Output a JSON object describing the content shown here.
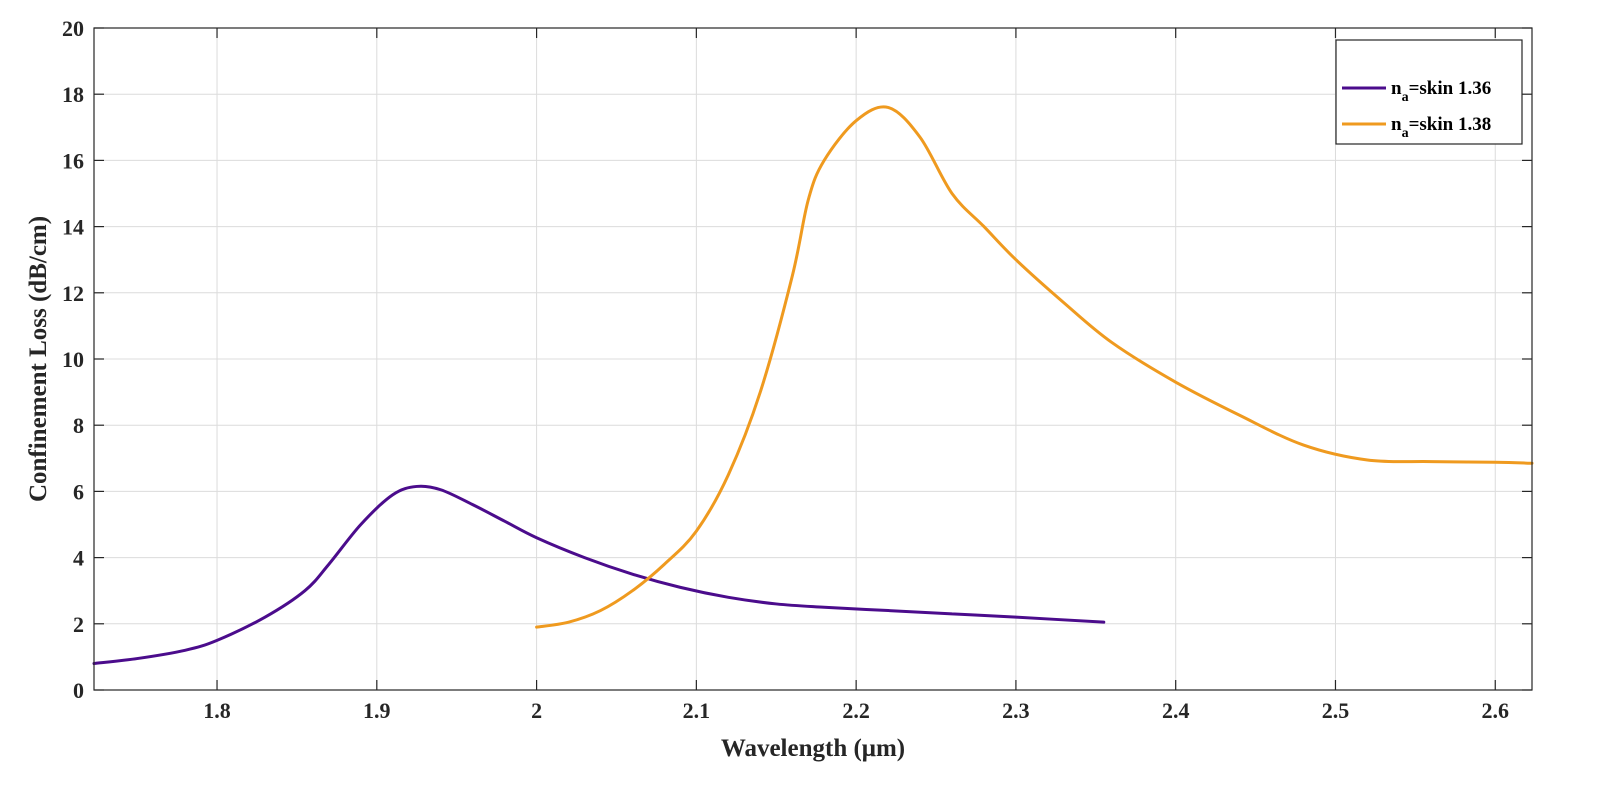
{
  "chart_data": {
    "type": "line",
    "xlabel": "Wavelength (μm)",
    "ylabel": "Confinement Loss (dB/cm)",
    "xlim": [
      1.723,
      2.623
    ],
    "ylim": [
      0,
      20
    ],
    "xticks": [
      1.8,
      1.9,
      2,
      2.1,
      2.2,
      2.3,
      2.4,
      2.5,
      2.6
    ],
    "xtick_labels": [
      "1.8",
      "1.9",
      "2",
      "2.1",
      "2.2",
      "2.3",
      "2.4",
      "2.5",
      "2.6"
    ],
    "yticks": [
      0,
      2,
      4,
      6,
      8,
      10,
      12,
      14,
      16,
      18,
      20
    ],
    "ytick_labels": [
      "0",
      "2",
      "4",
      "6",
      "8",
      "10",
      "12",
      "14",
      "16",
      "18",
      "20"
    ],
    "grid": true,
    "legend_position": "top-right",
    "series": [
      {
        "legend_main": "n",
        "legend_sub": "a",
        "legend_rest": "=skin 1.36",
        "color": "#4B0C8C",
        "x": [
          1.723,
          1.75,
          1.78,
          1.8,
          1.83,
          1.855,
          1.87,
          1.89,
          1.91,
          1.925,
          1.94,
          1.96,
          1.98,
          2.0,
          2.03,
          2.06,
          2.09,
          2.12,
          2.15,
          2.18,
          2.22,
          2.26,
          2.3,
          2.355
        ],
        "y": [
          0.8,
          0.95,
          1.2,
          1.5,
          2.2,
          3.0,
          3.8,
          5.0,
          5.9,
          6.15,
          6.05,
          5.6,
          5.1,
          4.6,
          4.0,
          3.5,
          3.1,
          2.8,
          2.6,
          2.5,
          2.4,
          2.3,
          2.2,
          2.05
        ]
      },
      {
        "legend_main": "n",
        "legend_sub": "a",
        "legend_rest": "=skin 1.38",
        "color": "#EF9A1F",
        "x": [
          2.0,
          2.02,
          2.04,
          2.06,
          2.08,
          2.1,
          2.12,
          2.14,
          2.16,
          2.17,
          2.18,
          2.2,
          2.22,
          2.24,
          2.26,
          2.28,
          2.3,
          2.33,
          2.36,
          2.4,
          2.44,
          2.48,
          2.52,
          2.56,
          2.6,
          2.623
        ],
        "y": [
          1.9,
          2.05,
          2.4,
          3.0,
          3.8,
          4.8,
          6.5,
          9.0,
          12.5,
          14.8,
          16.0,
          17.2,
          17.6,
          16.7,
          15.0,
          14.0,
          13.0,
          11.7,
          10.5,
          9.3,
          8.3,
          7.4,
          6.95,
          6.9,
          6.88,
          6.85
        ]
      }
    ]
  }
}
